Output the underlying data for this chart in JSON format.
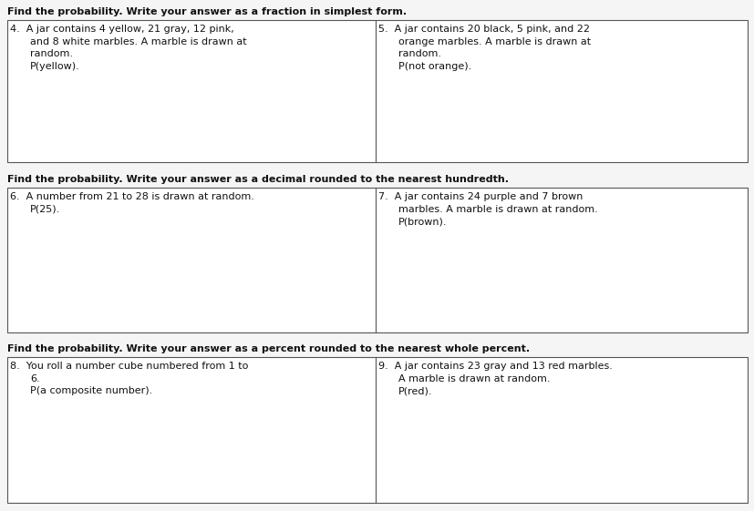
{
  "bg_color": "#f5f5f5",
  "text_color": "#111111",
  "border_color": "#555555",
  "font_size_header": 8.0,
  "font_size_body": 8.0,
  "sections": [
    {
      "header": "Find the probability. Write your answer as a fraction in simplest form.",
      "boxes": [
        {
          "number": "4.",
          "lines": [
            "A jar contains 4 yellow, 21 gray, 12 pink,",
            "and 8 white marbles. A marble is drawn at",
            "random.",
            "P(yellow)."
          ]
        },
        {
          "number": "5.",
          "lines": [
            "A jar contains 20 black, 5 pink, and 22",
            "orange marbles. A marble is drawn at",
            "random.",
            "P(not orange)."
          ]
        }
      ]
    },
    {
      "header": "Find the probability. Write your answer as a decimal rounded to the nearest hundredth.",
      "boxes": [
        {
          "number": "6.",
          "lines": [
            "A number from 21 to 28 is drawn at random.",
            "P(25)."
          ]
        },
        {
          "number": "7.",
          "lines": [
            "A jar contains 24 purple and 7 brown",
            "marbles. A marble is drawn at random.",
            "P(brown)."
          ]
        }
      ]
    },
    {
      "header": "Find the probability. Write your answer as a percent rounded to the nearest whole percent.",
      "boxes": [
        {
          "number": "8.",
          "lines": [
            "You roll a number cube numbered from 1 to",
            "6.",
            "P(a composite number)."
          ]
        },
        {
          "number": "9.",
          "lines": [
            "A jar contains 23 gray and 13 red marbles.",
            "A marble is drawn at random.",
            "P(red)."
          ]
        }
      ]
    }
  ]
}
